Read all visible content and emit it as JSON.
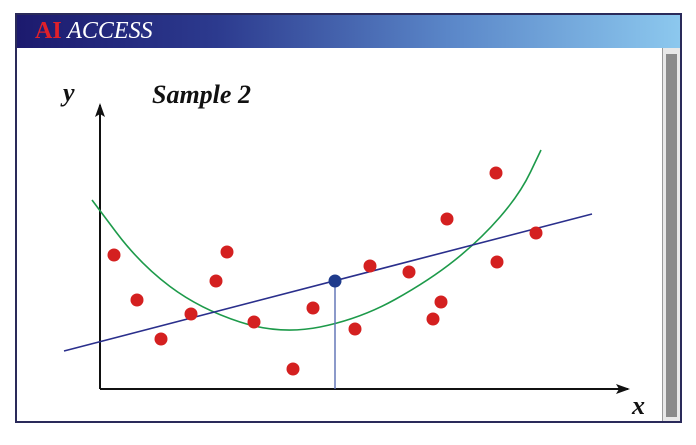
{
  "header": {
    "brand_prefix": "AI",
    "brand_suffix": "ACCESS",
    "accent_color": "#e0202a"
  },
  "chart_data": {
    "type": "scatter",
    "title": "Sample 2",
    "xlabel": "x",
    "ylabel": "y",
    "grid": false,
    "point_color": "#d42020",
    "mean_point_color": "#1f3b8c",
    "regression_color": "#2a2f8c",
    "curve_color": "#1d9a4a",
    "points": [
      {
        "x": 14,
        "y": 134
      },
      {
        "x": 37,
        "y": 89
      },
      {
        "x": 61,
        "y": 50
      },
      {
        "x": 91,
        "y": 75
      },
      {
        "x": 116,
        "y": 108
      },
      {
        "x": 127,
        "y": 137
      },
      {
        "x": 154,
        "y": 67
      },
      {
        "x": 193,
        "y": 20
      },
      {
        "x": 213,
        "y": 81
      },
      {
        "x": 255,
        "y": 60
      },
      {
        "x": 270,
        "y": 123
      },
      {
        "x": 309,
        "y": 117
      },
      {
        "x": 333,
        "y": 70
      },
      {
        "x": 341,
        "y": 87
      },
      {
        "x": 347,
        "y": 170
      },
      {
        "x": 396,
        "y": 216
      },
      {
        "x": 397,
        "y": 127
      },
      {
        "x": 436,
        "y": 156
      }
    ],
    "mean_point": {
      "x": 235,
      "y": 108
    },
    "regression_line": [
      {
        "x": -36,
        "y": 38
      },
      {
        "x": 492,
        "y": 175
      }
    ],
    "curve": [
      {
        "x": -8,
        "y": 189
      },
      {
        "x": 40,
        "y": 125
      },
      {
        "x": 100,
        "y": 80
      },
      {
        "x": 180,
        "y": 54
      },
      {
        "x": 260,
        "y": 70
      },
      {
        "x": 330,
        "y": 109
      },
      {
        "x": 380,
        "y": 149
      },
      {
        "x": 420,
        "y": 195
      },
      {
        "x": 441,
        "y": 239
      }
    ],
    "xlim": [
      -36,
      535
    ],
    "ylim": [
      0,
      290
    ]
  }
}
